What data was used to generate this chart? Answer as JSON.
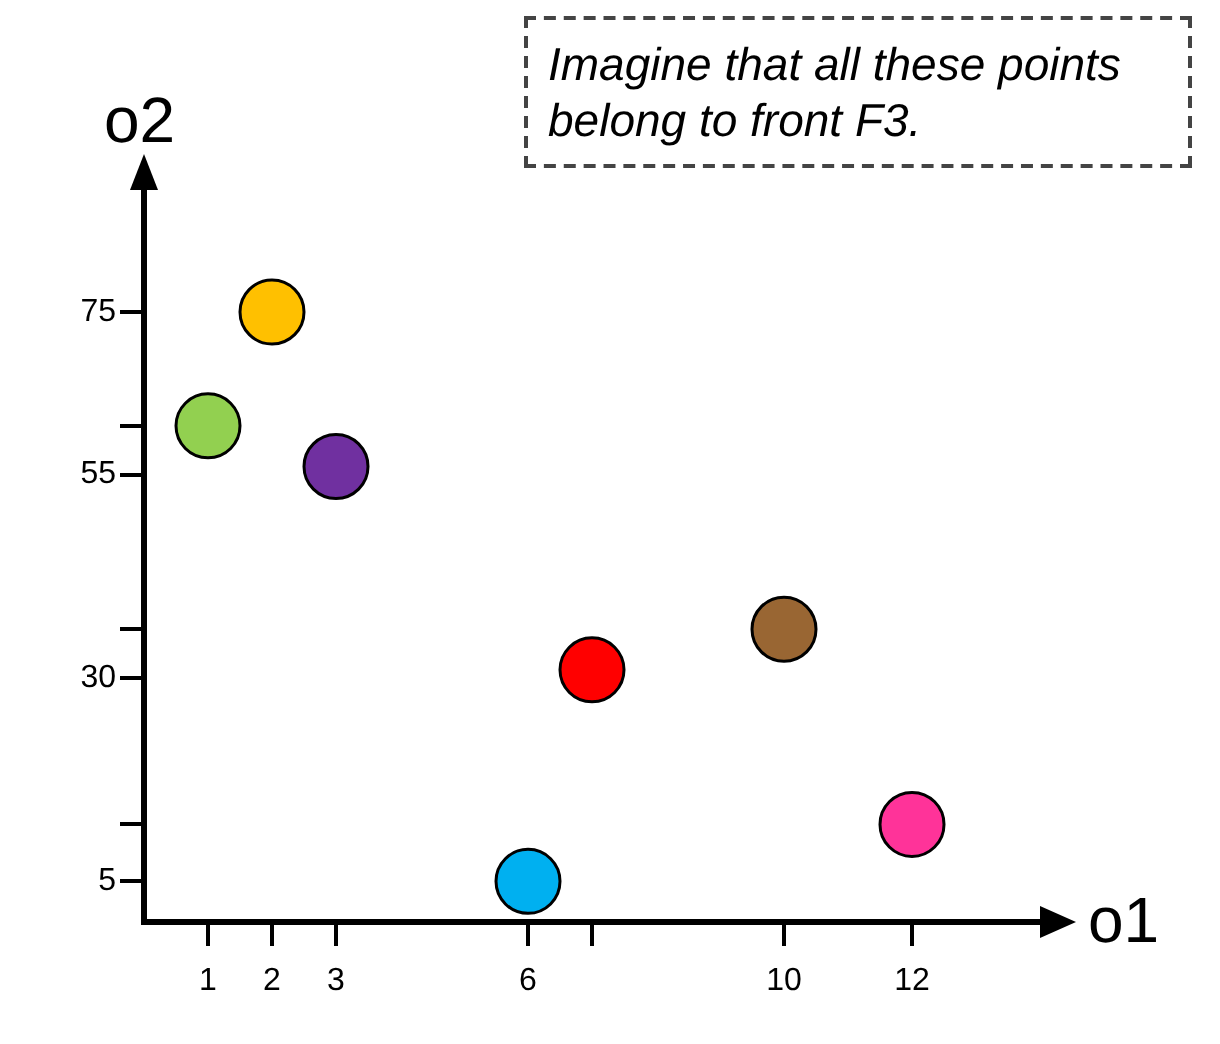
{
  "chart_data": {
    "type": "scatter",
    "xlabel": "o1",
    "ylabel": "o2",
    "annotations": [
      "Imagine that all these points belong to front F3."
    ],
    "x": [
      1,
      2,
      3,
      6,
      7,
      10,
      12
    ],
    "values": [
      61,
      75,
      56,
      5,
      31,
      36,
      12
    ],
    "colors": [
      "#92d050",
      "#ffc000",
      "#7030a0",
      "#00b0f0",
      "#ff0000",
      "#996633",
      "#ff3399"
    ],
    "xlim": [
      0,
      14
    ],
    "ylim": [
      0,
      90
    ],
    "xticks": [
      1,
      2,
      3,
      6,
      {
        "value": 7,
        "label": null
      },
      10,
      12
    ],
    "yticks": [
      5,
      {
        "value": 12,
        "label": null
      },
      30,
      {
        "value": 36,
        "label": null
      },
      55,
      {
        "value": 61,
        "label": null
      },
      75
    ],
    "grid": false,
    "legend": false,
    "marker": "circle"
  }
}
